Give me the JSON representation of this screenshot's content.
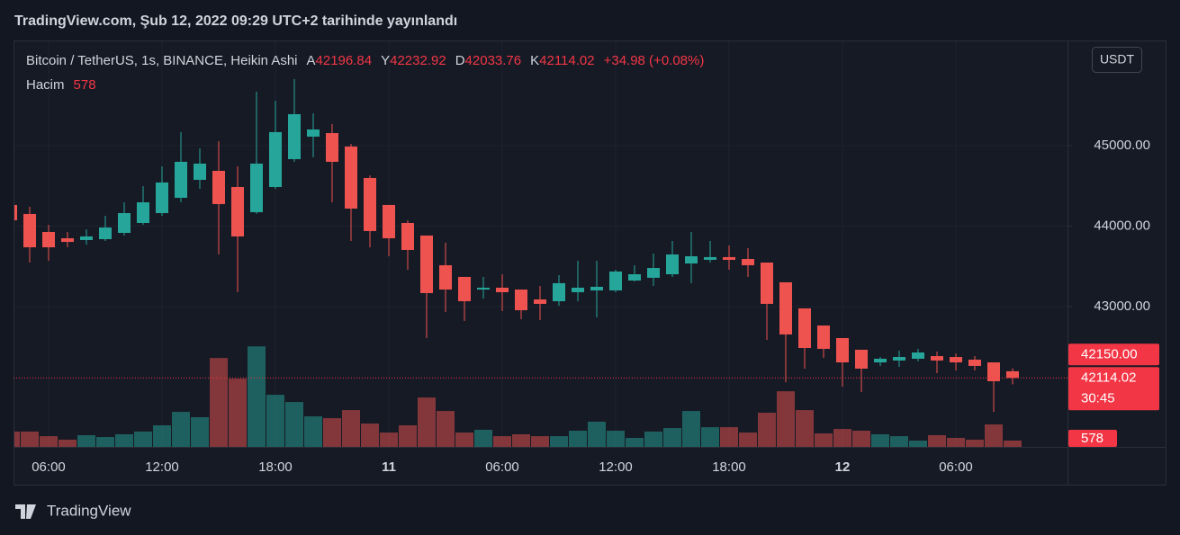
{
  "header": {
    "title": "TradingView.com, Şub 12, 2022 09:29 UTC+2 tarihinde yayınlandı"
  },
  "chart_data": {
    "type": "candlestick",
    "title": "Bitcoin / TetherUS, 1s, BINANCE, Heikin Ashi",
    "legend": [
      {
        "key": "A",
        "value": 42196.84
      },
      {
        "key": "Y",
        "value": 42232.92
      },
      {
        "key": "D",
        "value": 42033.76
      },
      {
        "key": "K",
        "value": 42114.02
      }
    ],
    "change": "+34.98 (+0.08%)",
    "volume_label": "Hacim",
    "currency": "USDT",
    "categories": [
      null,
      null,
      "06:00",
      null,
      null,
      null,
      null,
      null,
      "12:00",
      null,
      null,
      null,
      null,
      null,
      "18:00",
      null,
      null,
      null,
      null,
      null,
      "11",
      null,
      null,
      null,
      null,
      null,
      "06:00",
      null,
      null,
      null,
      null,
      null,
      "12:00",
      null,
      null,
      null,
      null,
      null,
      "18:00",
      null,
      null,
      null,
      null,
      null,
      "12",
      null,
      null,
      null,
      null,
      null,
      "06:00",
      null,
      null,
      null
    ],
    "open": [
      44263,
      44151,
      43927,
      43849,
      43827,
      43838,
      43916,
      44039,
      44162,
      44352,
      44575,
      44687,
      44486,
      44173,
      44486,
      44832,
      45112,
      45156,
      44989,
      44598,
      44263,
      44039,
      43883,
      43514,
      43369,
      43212,
      43235,
      43212,
      43089,
      43067,
      43179,
      43201,
      43201,
      43324,
      43358,
      43402,
      43536,
      43581,
      43615,
      43592,
      43547,
      43302,
      42978,
      42765,
      42609,
      42464,
      42307,
      42330,
      42352,
      42385,
      42374,
      42341,
      42307,
      42196.84
    ],
    "high": [
      44300,
      44240,
      44017,
      43927,
      43961,
      44128,
      44296,
      44497,
      44743,
      45168,
      44966,
      45056,
      44743,
      45670,
      45559,
      45827,
      45402,
      45268,
      45022,
      44631,
      44263,
      44073,
      43883,
      43793,
      43369,
      43369,
      43402,
      43212,
      43257,
      43391,
      43570,
      43570,
      43458,
      43514,
      43659,
      43816,
      43927,
      43816,
      43760,
      43726,
      43547,
      43302,
      42978,
      42765,
      42609,
      42464,
      42374,
      42453,
      42475,
      42441,
      42419,
      42385,
      42307,
      42232.92
    ],
    "low": [
      44050,
      43547,
      43570,
      43737,
      43771,
      43816,
      43883,
      44017,
      44128,
      44296,
      44464,
      43648,
      43179,
      44151,
      44464,
      44799,
      44855,
      44296,
      43816,
      43737,
      43626,
      43458,
      42609,
      42933,
      42821,
      43101,
      42944,
      42844,
      42832,
      43011,
      43067,
      42866,
      43179,
      43313,
      43257,
      43369,
      43291,
      43547,
      43458,
      43369,
      42587,
      42061,
      42229,
      42363,
      42006,
      41939,
      42263,
      42251,
      42318,
      42173,
      42207,
      42207,
      41693,
      42033.76
    ],
    "close": [
      44073,
      43737,
      43737,
      43804,
      43872,
      43983,
      44162,
      44296,
      44542,
      44799,
      44777,
      44274,
      43872,
      44777,
      45168,
      45391,
      45201,
      44799,
      44218,
      43939,
      43849,
      43704,
      43168,
      43212,
      43067,
      43235,
      43179,
      42955,
      43034,
      43291,
      43235,
      43246,
      43436,
      43402,
      43480,
      43648,
      43626,
      43615,
      43581,
      43514,
      43034,
      42654,
      42486,
      42475,
      42307,
      42229,
      42352,
      42374,
      42430,
      42330,
      42307,
      42263,
      42073,
      42114.02
    ],
    "volume": [
      1400,
      1400,
      980,
      660,
      1070,
      900,
      1150,
      1400,
      1970,
      3200,
      2710,
      8120,
      6230,
      9180,
      4760,
      4100,
      2790,
      2620,
      3360,
      2130,
      1310,
      1970,
      4510,
      3280,
      1310,
      1560,
      980,
      1150,
      980,
      980,
      1480,
      2300,
      1480,
      820,
      1400,
      1720,
      3280,
      1800,
      1800,
      1310,
      3120,
      5080,
      3360,
      1230,
      1640,
      1480,
      1150,
      980,
      570,
      1070,
      820,
      660,
      2050,
      578
    ],
    "volume_ylim": [
      0,
      11500
    ],
    "ylim": [
      41257,
      46307
    ],
    "yticks": [
      {
        "value": 43000,
        "label": "43000.00"
      },
      {
        "value": 44000,
        "label": "44000.00"
      },
      {
        "value": 45000,
        "label": "45000.00"
      }
    ],
    "up_color": "#26a69a",
    "down_color": "#ef5350",
    "grid": true,
    "last_price": 42114.02,
    "countdown": "30:45",
    "price_labels": [
      {
        "value": 42150,
        "label": "42150.00"
      }
    ]
  },
  "footer": {
    "brand": "TradingView"
  }
}
